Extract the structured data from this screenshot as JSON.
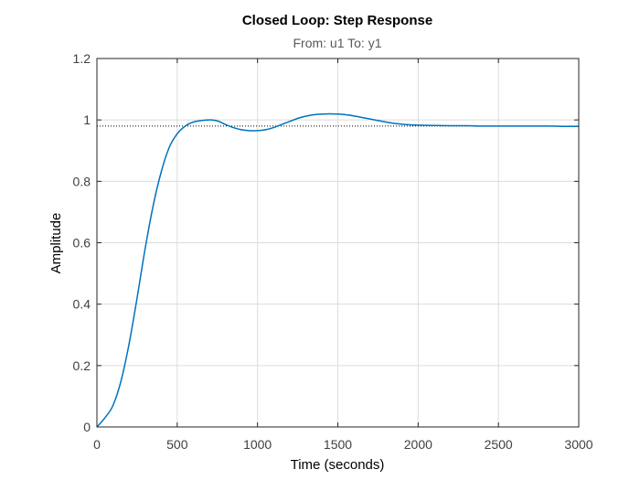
{
  "chart_data": {
    "type": "line",
    "title": "Closed Loop: Step Response",
    "subtitle": "From: u1  To: y1",
    "xlabel": "Time (seconds)",
    "ylabel": "Amplitude",
    "xlim": [
      0,
      3000
    ],
    "ylim": [
      0,
      1.2
    ],
    "xticks": [
      0,
      500,
      1000,
      1500,
      2000,
      2500,
      3000
    ],
    "xtick_labels": [
      "0",
      "500",
      "1000",
      "1500",
      "2000",
      "2500",
      "3000"
    ],
    "yticks": [
      0,
      0.2,
      0.4,
      0.6,
      0.8,
      1,
      1.2
    ],
    "ytick_labels": [
      "0",
      "0.2",
      "0.4",
      "0.6",
      "0.8",
      "1",
      "1.2"
    ],
    "grid": true,
    "steady_state_value": 0.98,
    "series_color": "#0072bd",
    "series": [
      {
        "x": [
          0,
          50,
          100,
          150,
          200,
          250,
          300,
          350,
          400,
          450,
          500,
          550,
          600,
          650,
          700,
          730,
          760,
          800,
          850,
          900,
          950,
          1000,
          1050,
          1100,
          1150,
          1200,
          1250,
          1300,
          1350,
          1400,
          1450,
          1500,
          1550,
          1600,
          1650,
          1700,
          1750,
          1800,
          1850,
          1900,
          1950,
          2000,
          2100,
          2200,
          2300,
          2400,
          2500,
          2600,
          2700,
          2800,
          2900,
          3000
        ],
        "y": [
          0,
          0.03,
          0.07,
          0.15,
          0.27,
          0.42,
          0.58,
          0.72,
          0.83,
          0.91,
          0.955,
          0.98,
          0.993,
          0.998,
          1.0,
          0.999,
          0.995,
          0.985,
          0.975,
          0.968,
          0.965,
          0.965,
          0.968,
          0.975,
          0.985,
          0.995,
          1.005,
          1.012,
          1.017,
          1.019,
          1.02,
          1.019,
          1.017,
          1.013,
          1.008,
          1.003,
          0.998,
          0.993,
          0.989,
          0.986,
          0.984,
          0.983,
          0.982,
          0.981,
          0.981,
          0.98,
          0.98,
          0.98,
          0.98,
          0.98,
          0.979,
          0.979
        ]
      }
    ]
  }
}
